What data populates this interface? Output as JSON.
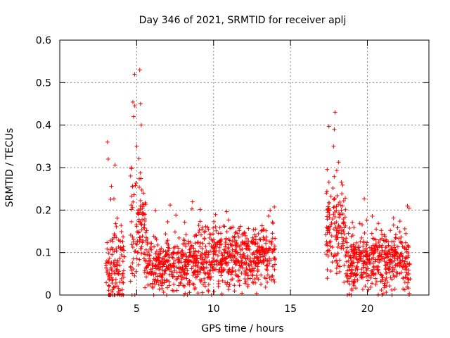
{
  "chart_data": {
    "type": "scatter",
    "title": "Day 346 of 2021, SRMTID for receiver aplj",
    "xlabel": "GPS time / hours",
    "ylabel": "SRMTID / TECUs",
    "xlim": [
      0,
      24
    ],
    "ylim": [
      0,
      0.6
    ],
    "x_ticks": [
      "0",
      "5",
      "10",
      "15",
      "20"
    ],
    "y_ticks": [
      "0",
      "0.1",
      "0.2",
      "0.3",
      "0.4",
      "0.5",
      "0.6"
    ],
    "grid": true,
    "marker": "+",
    "color": "#ff0000",
    "series": [
      {
        "name": "SRMTID",
        "segments": [
          {
            "x_start": 3.0,
            "x_end": 4.2,
            "typical": 0.06,
            "spread": 0.1,
            "max": 0.36
          },
          {
            "x_start": 4.6,
            "x_end": 5.6,
            "typical": 0.15,
            "spread": 0.15,
            "max": 0.53
          },
          {
            "x_start": 5.6,
            "x_end": 9.0,
            "typical": 0.07,
            "spread": 0.06,
            "max": 0.22
          },
          {
            "x_start": 9.0,
            "x_end": 14.0,
            "typical": 0.09,
            "spread": 0.07,
            "max": 0.21
          },
          {
            "x_start": 17.3,
            "x_end": 18.6,
            "typical": 0.15,
            "spread": 0.12,
            "max": 0.43
          },
          {
            "x_start": 18.6,
            "x_end": 22.8,
            "typical": 0.08,
            "spread": 0.07,
            "max": 0.23
          }
        ],
        "peaks": [
          {
            "x": 3.1,
            "y": 0.36
          },
          {
            "x": 3.15,
            "y": 0.32
          },
          {
            "x": 4.8,
            "y": 0.42
          },
          {
            "x": 5.0,
            "y": 0.35
          },
          {
            "x": 5.2,
            "y": 0.53
          },
          {
            "x": 5.25,
            "y": 0.45
          },
          {
            "x": 5.3,
            "y": 0.4
          },
          {
            "x": 17.9,
            "y": 0.43
          },
          {
            "x": 17.85,
            "y": 0.39
          },
          {
            "x": 17.8,
            "y": 0.35
          }
        ]
      }
    ]
  }
}
